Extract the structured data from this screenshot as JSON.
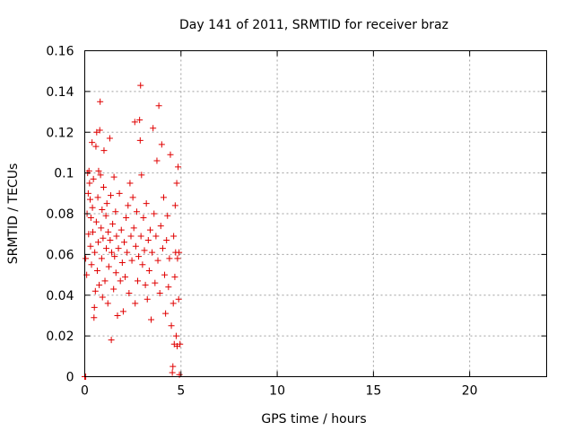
{
  "chart_data": {
    "type": "scatter",
    "title": "Day 141 of 2011, SRMTID for receiver braz",
    "xlabel": "GPS time / hours",
    "ylabel": "SRMTID / TECUs",
    "xlim": [
      0,
      24
    ],
    "ylim": [
      0,
      0.16
    ],
    "xticks": [
      0,
      5,
      10,
      15,
      20
    ],
    "xtick_labels": [
      "0",
      "5",
      "10",
      "15",
      "20"
    ],
    "yticks": [
      0,
      0.02,
      0.04,
      0.06,
      0.08,
      0.1,
      0.12,
      0.14,
      0.16
    ],
    "ytick_labels": [
      "0",
      "0.02",
      "0.04",
      "0.06",
      "0.08",
      "0.1",
      "0.12",
      "0.14",
      "0.16"
    ],
    "grid": true,
    "marker": "plus",
    "colors": {
      "points": "#e00000",
      "grid": "#a0a0a0",
      "axes": "#000000"
    },
    "series": [
      {
        "name": "SRMTID",
        "points": [
          [
            0.0,
            0.0
          ],
          [
            0.05,
            0.0
          ],
          [
            0.05,
            0.058
          ],
          [
            0.1,
            0.05
          ],
          [
            0.12,
            0.08
          ],
          [
            0.15,
            0.1
          ],
          [
            0.18,
            0.09
          ],
          [
            0.2,
            0.07
          ],
          [
            0.22,
            0.101
          ],
          [
            0.25,
            0.095
          ],
          [
            0.28,
            0.087
          ],
          [
            0.3,
            0.064
          ],
          [
            0.32,
            0.078
          ],
          [
            0.35,
            0.055
          ],
          [
            0.38,
            0.115
          ],
          [
            0.4,
            0.083
          ],
          [
            0.42,
            0.071
          ],
          [
            0.45,
            0.097
          ],
          [
            0.48,
            0.029
          ],
          [
            0.5,
            0.034
          ],
          [
            0.52,
            0.061
          ],
          [
            0.55,
            0.042
          ],
          [
            0.58,
            0.113
          ],
          [
            0.6,
            0.076
          ],
          [
            0.62,
            0.12
          ],
          [
            0.65,
            0.052
          ],
          [
            0.68,
            0.088
          ],
          [
            0.7,
            0.066
          ],
          [
            0.72,
            0.101
          ],
          [
            0.75,
            0.045
          ],
          [
            0.78,
            0.121
          ],
          [
            0.8,
            0.135
          ],
          [
            0.82,
            0.099
          ],
          [
            0.85,
            0.073
          ],
          [
            0.88,
            0.058
          ],
          [
            0.9,
            0.082
          ],
          [
            0.92,
            0.039
          ],
          [
            0.95,
            0.068
          ],
          [
            0.98,
            0.093
          ],
          [
            1.0,
            0.111
          ],
          [
            1.05,
            0.047
          ],
          [
            1.1,
            0.079
          ],
          [
            1.12,
            0.063
          ],
          [
            1.15,
            0.085
          ],
          [
            1.2,
            0.036
          ],
          [
            1.22,
            0.071
          ],
          [
            1.25,
            0.054
          ],
          [
            1.3,
            0.117
          ],
          [
            1.32,
            0.067
          ],
          [
            1.35,
            0.089
          ],
          [
            1.38,
            0.018
          ],
          [
            1.4,
            0.061
          ],
          [
            1.45,
            0.075
          ],
          [
            1.5,
            0.043
          ],
          [
            1.52,
            0.098
          ],
          [
            1.55,
            0.059
          ],
          [
            1.6,
            0.081
          ],
          [
            1.62,
            0.051
          ],
          [
            1.65,
            0.069
          ],
          [
            1.7,
            0.03
          ],
          [
            1.75,
            0.063
          ],
          [
            1.8,
            0.09
          ],
          [
            1.85,
            0.047
          ],
          [
            1.9,
            0.072
          ],
          [
            1.95,
            0.056
          ],
          [
            2.0,
            0.032
          ],
          [
            2.05,
            0.066
          ],
          [
            2.1,
            0.049
          ],
          [
            2.15,
            0.078
          ],
          [
            2.2,
            0.061
          ],
          [
            2.25,
            0.084
          ],
          [
            2.3,
            0.041
          ],
          [
            2.35,
            0.095
          ],
          [
            2.4,
            0.069
          ],
          [
            2.45,
            0.057
          ],
          [
            2.5,
            0.088
          ],
          [
            2.55,
            0.073
          ],
          [
            2.6,
            0.125
          ],
          [
            2.62,
            0.036
          ],
          [
            2.65,
            0.064
          ],
          [
            2.7,
            0.081
          ],
          [
            2.75,
            0.047
          ],
          [
            2.8,
            0.059
          ],
          [
            2.85,
            0.126
          ],
          [
            2.88,
            0.116
          ],
          [
            2.9,
            0.143
          ],
          [
            2.92,
            0.069
          ],
          [
            2.95,
            0.099
          ],
          [
            3.0,
            0.055
          ],
          [
            3.05,
            0.078
          ],
          [
            3.1,
            0.062
          ],
          [
            3.15,
            0.045
          ],
          [
            3.2,
            0.085
          ],
          [
            3.25,
            0.038
          ],
          [
            3.3,
            0.067
          ],
          [
            3.35,
            0.052
          ],
          [
            3.4,
            0.072
          ],
          [
            3.45,
            0.028
          ],
          [
            3.5,
            0.061
          ],
          [
            3.55,
            0.122
          ],
          [
            3.6,
            0.08
          ],
          [
            3.65,
            0.046
          ],
          [
            3.7,
            0.069
          ],
          [
            3.75,
            0.106
          ],
          [
            3.8,
            0.057
          ],
          [
            3.85,
            0.133
          ],
          [
            3.9,
            0.041
          ],
          [
            3.95,
            0.074
          ],
          [
            4.0,
            0.114
          ],
          [
            4.05,
            0.063
          ],
          [
            4.1,
            0.088
          ],
          [
            4.15,
            0.05
          ],
          [
            4.2,
            0.031
          ],
          [
            4.25,
            0.067
          ],
          [
            4.3,
            0.079
          ],
          [
            4.35,
            0.044
          ],
          [
            4.4,
            0.058
          ],
          [
            4.45,
            0.109
          ],
          [
            4.5,
            0.025
          ],
          [
            4.55,
            0.002
          ],
          [
            4.58,
            0.005
          ],
          [
            4.6,
            0.036
          ],
          [
            4.62,
            0.069
          ],
          [
            4.65,
            0.016
          ],
          [
            4.68,
            0.049
          ],
          [
            4.7,
            0.084
          ],
          [
            4.72,
            0.061
          ],
          [
            4.75,
            0.02
          ],
          [
            4.78,
            0.095
          ],
          [
            4.8,
            0.015
          ],
          [
            4.82,
            0.058
          ],
          [
            4.85,
            0.103
          ],
          [
            4.88,
            0.038
          ],
          [
            4.9,
            0.061
          ],
          [
            4.92,
            0.001
          ],
          [
            4.95,
            0.016
          ]
        ]
      }
    ]
  }
}
